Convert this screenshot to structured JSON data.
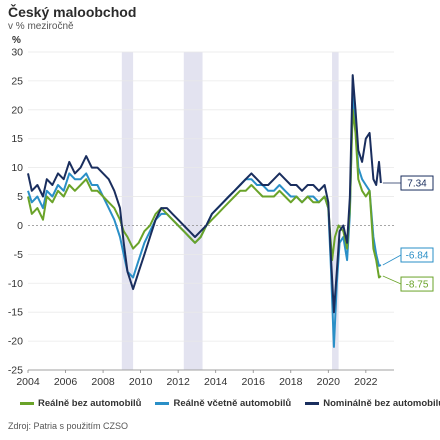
{
  "title": "Český maloobchod",
  "subtitle": "v % meziročně",
  "unit_label": "%",
  "source": "Zdroj: Patria s použitím CZSO",
  "colors": {
    "real_excl": "#6aa329",
    "real_incl": "#2a8fc7",
    "nominal_excl": "#1a2e5e",
    "recession": "#e3e3f0",
    "grid": "#e9e9e9",
    "zero": "#999999"
  },
  "chart_data": {
    "type": "line",
    "title": "Český maloobchod",
    "subtitle": "v % meziročně",
    "ylabel": "%",
    "xlabel": "",
    "xlim": [
      2004.0,
      2023.5
    ],
    "ylim": [
      -25,
      30
    ],
    "x_ticks": [
      2004,
      2006,
      2008,
      2010,
      2012,
      2014,
      2016,
      2018,
      2020,
      2022
    ],
    "x_tick_labels": [
      "2004",
      "2006",
      "2008",
      "2010",
      "2012",
      "2014",
      "2016",
      "2018",
      "2020",
      "2022"
    ],
    "y_ticks": [
      30,
      25,
      20,
      15,
      10,
      5,
      0,
      -5,
      -10,
      -15,
      -20,
      -25
    ],
    "y_tick_labels": [
      "30",
      "25",
      "20",
      "15",
      "10",
      "5",
      "0",
      "-5",
      "-10",
      "-15",
      "-20",
      "-25"
    ],
    "grid": true,
    "legend_position": "bottom",
    "shaded_periods": [
      [
        2009.0,
        2009.6
      ],
      [
        2012.3,
        2013.3
      ],
      [
        2020.2,
        2020.55
      ]
    ],
    "series": [
      {
        "name": "Reálně bez automobilů",
        "color": "#6aa329",
        "last_label": "-8.75",
        "points": [
          [
            2004.0,
            5
          ],
          [
            2004.2,
            2
          ],
          [
            2004.5,
            3
          ],
          [
            2004.8,
            1
          ],
          [
            2005.0,
            5
          ],
          [
            2005.3,
            4
          ],
          [
            2005.6,
            6
          ],
          [
            2005.9,
            5
          ],
          [
            2006.2,
            7
          ],
          [
            2006.5,
            6
          ],
          [
            2006.8,
            7
          ],
          [
            2007.1,
            8
          ],
          [
            2007.4,
            6
          ],
          [
            2007.7,
            6
          ],
          [
            2008.0,
            5
          ],
          [
            2008.3,
            4
          ],
          [
            2008.6,
            3
          ],
          [
            2008.9,
            1
          ],
          [
            2009.1,
            -1
          ],
          [
            2009.3,
            -2
          ],
          [
            2009.6,
            -4
          ],
          [
            2009.9,
            -3
          ],
          [
            2010.2,
            -1
          ],
          [
            2010.5,
            0
          ],
          [
            2010.8,
            2
          ],
          [
            2011.1,
            3
          ],
          [
            2011.4,
            2
          ],
          [
            2011.7,
            1
          ],
          [
            2012.0,
            0
          ],
          [
            2012.3,
            -1
          ],
          [
            2012.6,
            -2
          ],
          [
            2012.9,
            -3
          ],
          [
            2013.2,
            -2
          ],
          [
            2013.5,
            0
          ],
          [
            2013.8,
            1
          ],
          [
            2014.1,
            2
          ],
          [
            2014.4,
            3
          ],
          [
            2014.7,
            4
          ],
          [
            2015.0,
            5
          ],
          [
            2015.3,
            6
          ],
          [
            2015.6,
            6
          ],
          [
            2015.9,
            7
          ],
          [
            2016.2,
            6
          ],
          [
            2016.5,
            5
          ],
          [
            2016.8,
            5
          ],
          [
            2017.1,
            5
          ],
          [
            2017.4,
            6
          ],
          [
            2017.7,
            5
          ],
          [
            2018.0,
            4
          ],
          [
            2018.3,
            5
          ],
          [
            2018.6,
            4
          ],
          [
            2018.9,
            5
          ],
          [
            2019.2,
            4
          ],
          [
            2019.5,
            4
          ],
          [
            2019.8,
            5
          ],
          [
            2020.0,
            3
          ],
          [
            2020.2,
            -6
          ],
          [
            2020.35,
            -2
          ],
          [
            2020.55,
            0
          ],
          [
            2020.8,
            -1
          ],
          [
            2021.0,
            -4
          ],
          [
            2021.15,
            3
          ],
          [
            2021.3,
            20
          ],
          [
            2021.45,
            16
          ],
          [
            2021.6,
            8
          ],
          [
            2021.8,
            6
          ],
          [
            2022.0,
            5
          ],
          [
            2022.2,
            6
          ],
          [
            2022.4,
            -4
          ],
          [
            2022.55,
            -6
          ],
          [
            2022.7,
            -9
          ],
          [
            2022.8,
            -8.75
          ]
        ]
      },
      {
        "name": "Reálně včetně automobilů",
        "color": "#2a8fc7",
        "last_label": "-6.84",
        "points": [
          [
            2004.0,
            6
          ],
          [
            2004.2,
            4
          ],
          [
            2004.5,
            5
          ],
          [
            2004.8,
            3
          ],
          [
            2005.0,
            6
          ],
          [
            2005.3,
            5
          ],
          [
            2005.6,
            7
          ],
          [
            2005.9,
            6
          ],
          [
            2006.2,
            9
          ],
          [
            2006.5,
            8
          ],
          [
            2006.8,
            8
          ],
          [
            2007.1,
            9
          ],
          [
            2007.4,
            7
          ],
          [
            2007.7,
            7
          ],
          [
            2008.0,
            5
          ],
          [
            2008.3,
            3
          ],
          [
            2008.6,
            1
          ],
          [
            2008.9,
            -2
          ],
          [
            2009.1,
            -5
          ],
          [
            2009.3,
            -8
          ],
          [
            2009.6,
            -9
          ],
          [
            2009.9,
            -6
          ],
          [
            2010.2,
            -3
          ],
          [
            2010.5,
            -1
          ],
          [
            2010.8,
            1
          ],
          [
            2011.1,
            2
          ],
          [
            2011.4,
            2
          ],
          [
            2011.7,
            1
          ],
          [
            2012.0,
            0
          ],
          [
            2012.3,
            -1
          ],
          [
            2012.6,
            -2
          ],
          [
            2012.9,
            -3
          ],
          [
            2013.2,
            -2
          ],
          [
            2013.5,
            0
          ],
          [
            2013.8,
            2
          ],
          [
            2014.1,
            3
          ],
          [
            2014.4,
            4
          ],
          [
            2014.7,
            5
          ],
          [
            2015.0,
            6
          ],
          [
            2015.3,
            7
          ],
          [
            2015.6,
            8
          ],
          [
            2015.9,
            8
          ],
          [
            2016.2,
            7
          ],
          [
            2016.5,
            7
          ],
          [
            2016.8,
            6
          ],
          [
            2017.1,
            6
          ],
          [
            2017.4,
            7
          ],
          [
            2017.7,
            6
          ],
          [
            2018.0,
            5
          ],
          [
            2018.3,
            5
          ],
          [
            2018.6,
            4
          ],
          [
            2018.9,
            5
          ],
          [
            2019.2,
            5
          ],
          [
            2019.5,
            4
          ],
          [
            2019.8,
            5
          ],
          [
            2020.0,
            3
          ],
          [
            2020.15,
            -8
          ],
          [
            2020.3,
            -21
          ],
          [
            2020.45,
            -10
          ],
          [
            2020.6,
            -3
          ],
          [
            2020.8,
            -2
          ],
          [
            2021.0,
            -6
          ],
          [
            2021.15,
            2
          ],
          [
            2021.3,
            23
          ],
          [
            2021.45,
            18
          ],
          [
            2021.6,
            10
          ],
          [
            2021.8,
            8
          ],
          [
            2022.0,
            7
          ],
          [
            2022.2,
            6
          ],
          [
            2022.4,
            -2
          ],
          [
            2022.55,
            -5
          ],
          [
            2022.7,
            -7
          ],
          [
            2022.8,
            -6.84
          ]
        ]
      },
      {
        "name": "Nominálně bez automobilů",
        "color": "#1a2e5e",
        "last_label": "7.34",
        "points": [
          [
            2004.0,
            9
          ],
          [
            2004.2,
            6
          ],
          [
            2004.5,
            7
          ],
          [
            2004.8,
            5
          ],
          [
            2005.0,
            8
          ],
          [
            2005.3,
            7
          ],
          [
            2005.6,
            9
          ],
          [
            2005.9,
            8
          ],
          [
            2006.2,
            11
          ],
          [
            2006.5,
            9
          ],
          [
            2006.8,
            10
          ],
          [
            2007.1,
            12
          ],
          [
            2007.4,
            10
          ],
          [
            2007.7,
            10
          ],
          [
            2008.0,
            9
          ],
          [
            2008.3,
            8
          ],
          [
            2008.6,
            6
          ],
          [
            2008.9,
            3
          ],
          [
            2009.1,
            -3
          ],
          [
            2009.3,
            -8
          ],
          [
            2009.6,
            -11
          ],
          [
            2009.9,
            -8
          ],
          [
            2010.2,
            -5
          ],
          [
            2010.5,
            -2
          ],
          [
            2010.8,
            1
          ],
          [
            2011.1,
            3
          ],
          [
            2011.4,
            3
          ],
          [
            2011.7,
            2
          ],
          [
            2012.0,
            1
          ],
          [
            2012.3,
            0
          ],
          [
            2012.6,
            -1
          ],
          [
            2012.9,
            -2
          ],
          [
            2013.2,
            -1
          ],
          [
            2013.5,
            0
          ],
          [
            2013.8,
            2
          ],
          [
            2014.1,
            3
          ],
          [
            2014.4,
            4
          ],
          [
            2014.7,
            5
          ],
          [
            2015.0,
            6
          ],
          [
            2015.3,
            7
          ],
          [
            2015.6,
            8
          ],
          [
            2015.9,
            9
          ],
          [
            2016.2,
            8
          ],
          [
            2016.5,
            7
          ],
          [
            2016.8,
            7
          ],
          [
            2017.1,
            8
          ],
          [
            2017.4,
            9
          ],
          [
            2017.7,
            8
          ],
          [
            2018.0,
            7
          ],
          [
            2018.3,
            7
          ],
          [
            2018.6,
            6
          ],
          [
            2018.9,
            7
          ],
          [
            2019.2,
            7
          ],
          [
            2019.5,
            6
          ],
          [
            2019.8,
            7
          ],
          [
            2020.0,
            4
          ],
          [
            2020.15,
            -6
          ],
          [
            2020.3,
            -15
          ],
          [
            2020.45,
            -8
          ],
          [
            2020.6,
            -1
          ],
          [
            2020.8,
            0
          ],
          [
            2021.0,
            -3
          ],
          [
            2021.15,
            5
          ],
          [
            2021.3,
            26
          ],
          [
            2021.45,
            20
          ],
          [
            2021.6,
            13
          ],
          [
            2021.8,
            11
          ],
          [
            2022.0,
            15
          ],
          [
            2022.2,
            16
          ],
          [
            2022.4,
            8
          ],
          [
            2022.55,
            7
          ],
          [
            2022.7,
            11
          ],
          [
            2022.8,
            7.34
          ]
        ]
      }
    ]
  }
}
